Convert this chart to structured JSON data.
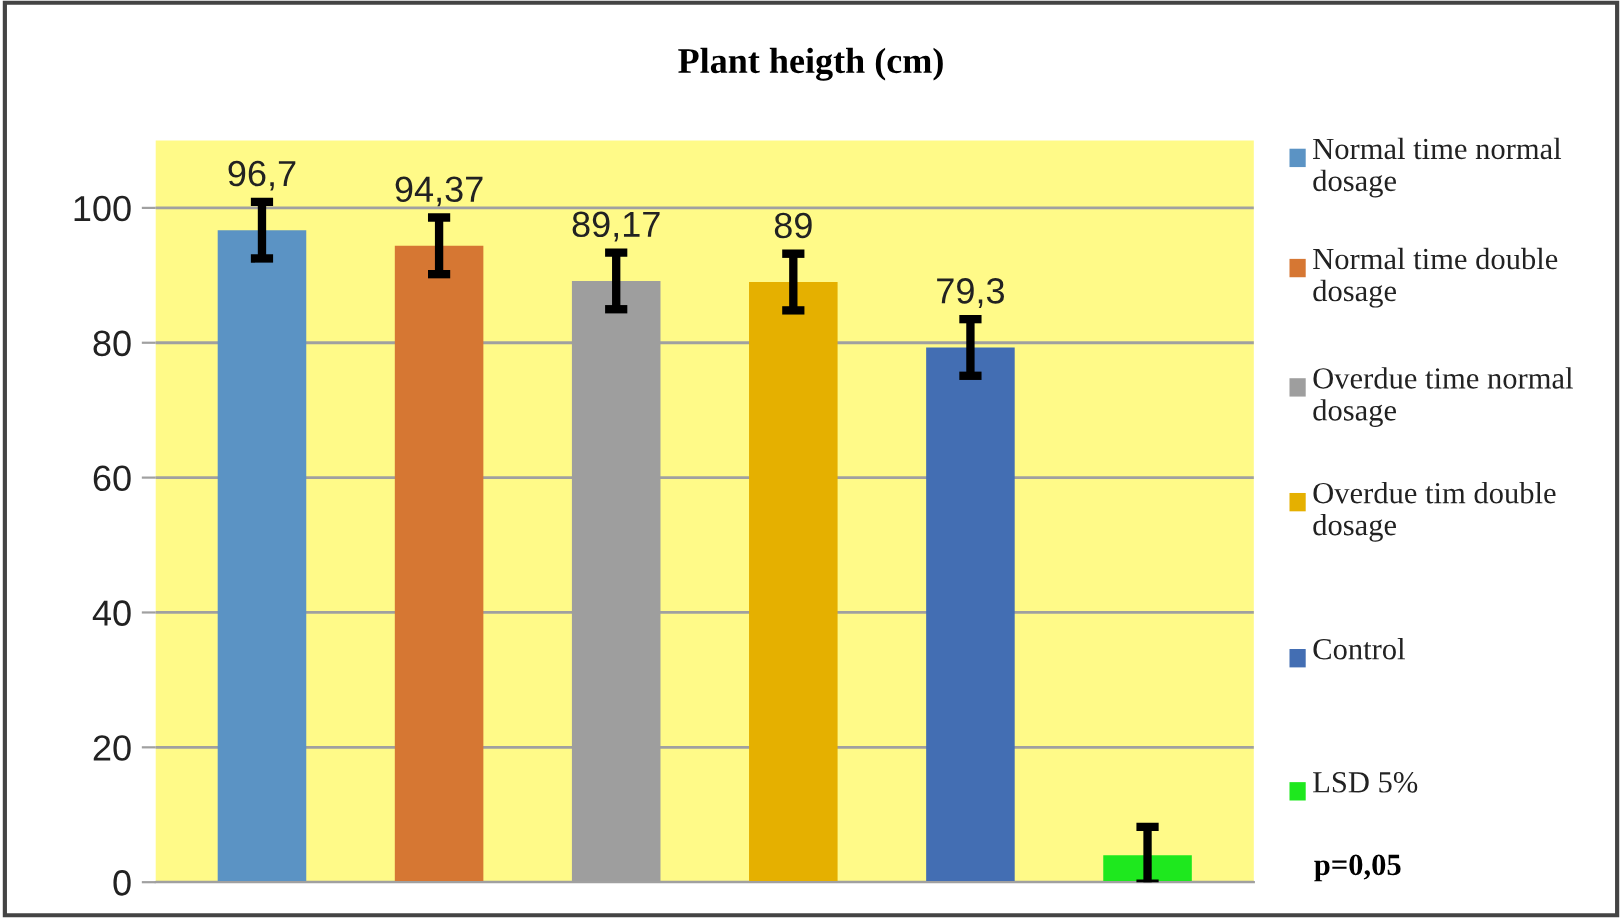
{
  "chart_data": {
    "type": "bar",
    "title": "Plant heigth (cm)",
    "categories": [
      null,
      null,
      null,
      null,
      null,
      null
    ],
    "series": [
      {
        "name": "Normal time normal dosage",
        "color": "#5b93c4",
        "values": [
          96.7,
          null,
          null,
          null,
          null,
          null
        ],
        "errors": [
          4.2,
          null,
          null,
          null,
          null,
          null
        ],
        "value_labels": [
          "96,7",
          null,
          null,
          null,
          null,
          null
        ]
      },
      {
        "name": "Normal time double dosage",
        "color": "#d67733",
        "values": [
          null,
          94.37,
          null,
          null,
          null,
          null
        ],
        "errors": [
          null,
          4.2,
          null,
          null,
          null,
          null
        ],
        "value_labels": [
          null,
          "94,37",
          null,
          null,
          null,
          null
        ]
      },
      {
        "name": "Overdue time normal dosage",
        "color": "#9e9e9e",
        "values": [
          null,
          null,
          89.17,
          null,
          null,
          null
        ],
        "errors": [
          null,
          null,
          4.2,
          null,
          null,
          null
        ],
        "value_labels": [
          null,
          null,
          "89,17",
          null,
          null,
          null
        ]
      },
      {
        "name": "Overdue tim double dosage",
        "color": "#e5b000",
        "values": [
          null,
          null,
          null,
          89,
          null,
          null
        ],
        "errors": [
          null,
          null,
          null,
          4.2,
          null,
          null
        ],
        "value_labels": [
          null,
          null,
          null,
          "89",
          null,
          null
        ]
      },
      {
        "name": "Control",
        "color": "#436eb3",
        "values": [
          null,
          null,
          null,
          null,
          79.3,
          null
        ],
        "errors": [
          null,
          null,
          null,
          null,
          4.2,
          null
        ],
        "value_labels": [
          null,
          null,
          null,
          null,
          "79,3",
          null
        ]
      },
      {
        "name": "LSD 5%",
        "color": "#1ee81e",
        "values": [
          null,
          null,
          null,
          null,
          null,
          4.0
        ],
        "errors": [
          null,
          null,
          null,
          null,
          null,
          4.2
        ]
      }
    ],
    "annotations": [
      "p=0,05"
    ],
    "ylim": [
      0,
      110
    ],
    "yticks": [
      0,
      20,
      40,
      60,
      80,
      100
    ],
    "grid": "y",
    "legend": "right"
  }
}
